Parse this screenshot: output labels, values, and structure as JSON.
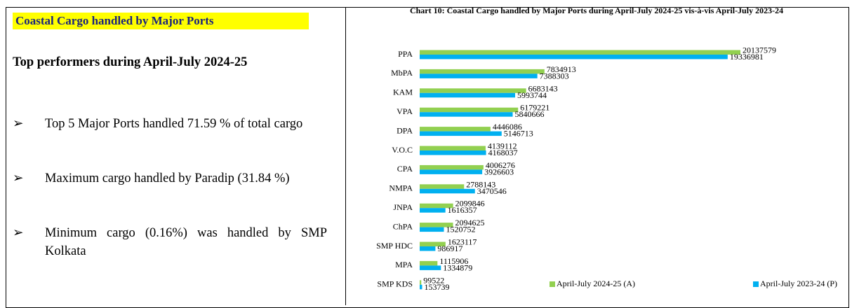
{
  "heading": "Coastal Cargo handled by Major Ports",
  "subheading": "Top performers during April-July 2024-25",
  "bullets": [
    "Top 5 Major Ports handled 71.59 % of total cargo",
    "Maximum cargo handled by Paradip (31.84 %)",
    "Minimum cargo (0.16%) was handled by SMP Kolkata"
  ],
  "chart_data": {
    "type": "bar",
    "orientation": "horizontal",
    "title": "Chart 10: Coastal Cargo handled by Major Ports during April-July 2024-25 vis-à-vis April-July 2023-24",
    "categories": [
      "PPA",
      "MbPA",
      "KAM",
      "VPA",
      "DPA",
      "V.O.C",
      "CPA",
      "NMPA",
      "JNPA",
      "ChPA",
      "SMP HDC",
      "MPA",
      "SMP KDS"
    ],
    "series": [
      {
        "name": "April-July 2024-25 (A)",
        "color": "#92d050",
        "values": [
          20137579,
          7834913,
          6683143,
          6179221,
          4446086,
          4139112,
          4006276,
          2788143,
          2099846,
          2094625,
          1623117,
          1115906,
          99522
        ]
      },
      {
        "name": "April-July 2023-24 (P)",
        "color": "#00b0f0",
        "values": [
          19336981,
          7388303,
          5993744,
          5840666,
          5146713,
          4168037,
          3926603,
          3470546,
          1616357,
          1520752,
          986917,
          1334879,
          153739
        ]
      }
    ],
    "legend": "bottom-right"
  }
}
